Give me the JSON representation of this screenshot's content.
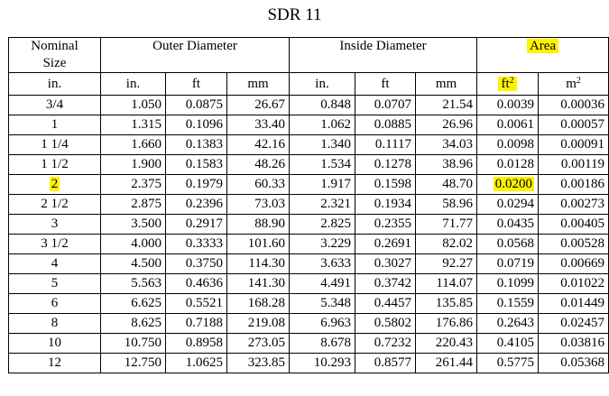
{
  "title": "SDR 11",
  "groups": {
    "nominal_size": [
      "Nominal",
      "Size"
    ],
    "outer_diameter": "Outer Diameter",
    "inside_diameter": "Inside Diameter",
    "area": "Area"
  },
  "units": {
    "nominal": "in.",
    "od_in": "in.",
    "od_ft": "ft",
    "od_mm": "mm",
    "id_in": "in.",
    "id_ft": "ft",
    "id_mm": "mm",
    "area_ft_base": "ft",
    "area_ft_exp": "2",
    "area_m_base": "m",
    "area_m_exp": "2"
  },
  "highlight_color": "#fff200",
  "rows": [
    [
      "3/4",
      "1.050",
      "0.0875",
      "26.67",
      "0.848",
      "0.0707",
      "21.54",
      "0.0039",
      "0.00036"
    ],
    [
      "1",
      "1.315",
      "0.1096",
      "33.40",
      "1.062",
      "0.0885",
      "26.96",
      "0.0061",
      "0.00057"
    ],
    [
      "1 1/4",
      "1.660",
      "0.1383",
      "42.16",
      "1.340",
      "0.1117",
      "34.03",
      "0.0098",
      "0.00091"
    ],
    [
      "1 1/2",
      "1.900",
      "0.1583",
      "48.26",
      "1.534",
      "0.1278",
      "38.96",
      "0.0128",
      "0.00119"
    ],
    [
      "2",
      "2.375",
      "0.1979",
      "60.33",
      "1.917",
      "0.1598",
      "48.70",
      "0.0200",
      "0.00186"
    ],
    [
      "2 1/2",
      "2.875",
      "0.2396",
      "73.03",
      "2.321",
      "0.1934",
      "58.96",
      "0.0294",
      "0.00273"
    ],
    [
      "3",
      "3.500",
      "0.2917",
      "88.90",
      "2.825",
      "0.2355",
      "71.77",
      "0.0435",
      "0.00405"
    ],
    [
      "3 1/2",
      "4.000",
      "0.3333",
      "101.60",
      "3.229",
      "0.2691",
      "82.02",
      "0.0568",
      "0.00528"
    ],
    [
      "4",
      "4.500",
      "0.3750",
      "114.30",
      "3.633",
      "0.3027",
      "92.27",
      "0.0719",
      "0.00669"
    ],
    [
      "5",
      "5.563",
      "0.4636",
      "141.30",
      "4.491",
      "0.3742",
      "114.07",
      "0.1099",
      "0.01022"
    ],
    [
      "6",
      "6.625",
      "0.5521",
      "168.28",
      "5.348",
      "0.4457",
      "135.85",
      "0.1559",
      "0.01449"
    ],
    [
      "8",
      "8.625",
      "0.7188",
      "219.08",
      "6.963",
      "0.5802",
      "176.86",
      "0.2643",
      "0.02457"
    ],
    [
      "10",
      "10.750",
      "0.8958",
      "273.05",
      "8.678",
      "0.7232",
      "220.43",
      "0.4105",
      "0.03816"
    ],
    [
      "12",
      "12.750",
      "1.0625",
      "323.85",
      "10.293",
      "0.8577",
      "261.44",
      "0.5775",
      "0.05368"
    ]
  ]
}
